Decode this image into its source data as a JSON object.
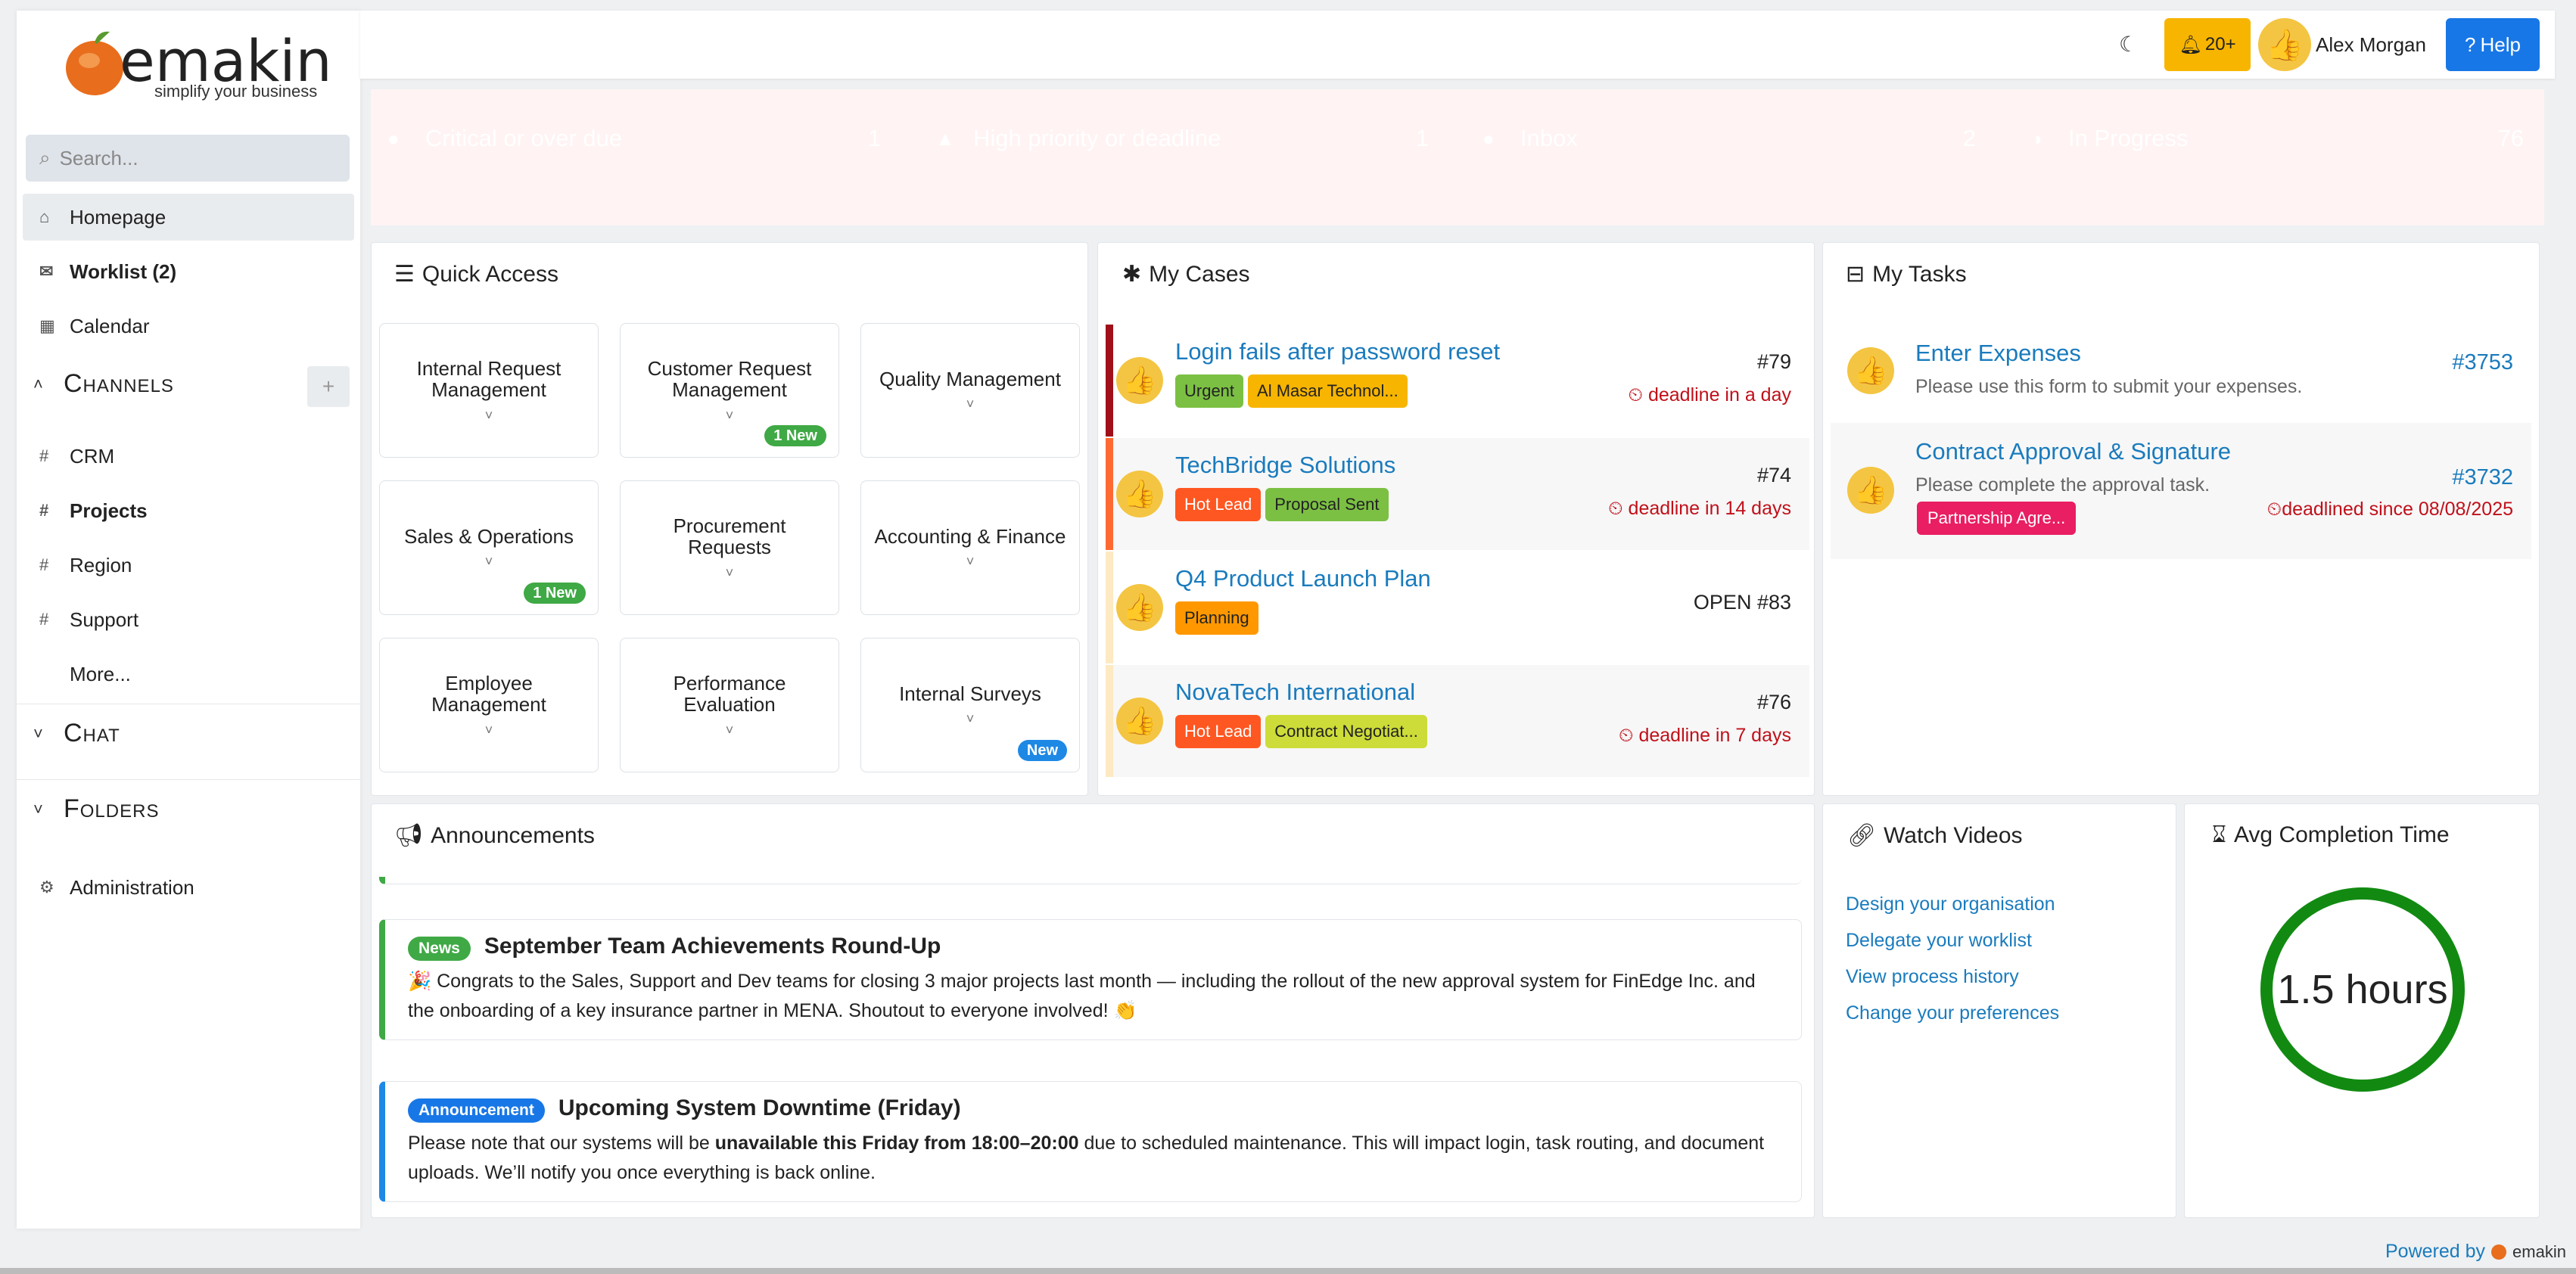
{
  "brand": {
    "name": "emakin",
    "tagline": "simplify your business"
  },
  "search": {
    "placeholder": "Search..."
  },
  "nav": {
    "homepage": "Homepage",
    "worklist": "Worklist (2)",
    "calendar": "Calendar",
    "channels_title": "Channels",
    "channels": [
      "CRM",
      "Projects",
      "Region",
      "Support"
    ],
    "more": "More...",
    "chat_title": "Chat",
    "folders_title": "Folders",
    "administration": "Administration"
  },
  "topbar": {
    "notifications": "20+",
    "user": "Alex Morgan",
    "help": "Help"
  },
  "kpis": [
    {
      "label": "Critical or over due",
      "count": "1",
      "color": "#ef3b3b"
    },
    {
      "label": "High priority or deadline",
      "count": "1",
      "color": "#f7b500"
    },
    {
      "label": "Inbox",
      "count": "2",
      "color": "#1e88e5"
    },
    {
      "label": "In Progress",
      "count": "76",
      "color": "#3fa945"
    }
  ],
  "quick_access": {
    "title": "Quick Access",
    "items": [
      {
        "label": "Internal Request Management",
        "badge": ""
      },
      {
        "label": "Customer Request Management",
        "badge": "1 New"
      },
      {
        "label": "Quality Management",
        "badge": ""
      },
      {
        "label": "Sales & Operations",
        "badge": "1 New"
      },
      {
        "label": "Procurement Requests",
        "badge": ""
      },
      {
        "label": "Accounting & Finance",
        "badge": ""
      },
      {
        "label": "Employee Management",
        "badge": ""
      },
      {
        "label": "Performance Evaluation",
        "badge": ""
      },
      {
        "label": "Internal Surveys",
        "badge": "New"
      }
    ]
  },
  "my_cases": {
    "title": "My Cases",
    "items": [
      {
        "title": "Login fails after password reset",
        "num": "#79",
        "deadline": "deadline in a day",
        "tags": [
          "Urgent",
          "Al Masar Technol..."
        ]
      },
      {
        "title": "TechBridge Solutions",
        "num": "#74",
        "deadline": "deadline in 14 days",
        "tags": [
          "Hot Lead",
          "Proposal Sent"
        ]
      },
      {
        "title": "Q4 Product Launch Plan",
        "num": "OPEN #83",
        "deadline": "",
        "tags": [
          "Planning"
        ]
      },
      {
        "title": "NovaTech International",
        "num": "#76",
        "deadline": "deadline in 7 days",
        "tags": [
          "Hot Lead",
          "Contract Negotiat..."
        ]
      }
    ]
  },
  "my_tasks": {
    "title": "My Tasks",
    "items": [
      {
        "title": "Enter Expenses",
        "desc": "Please use this form to submit your expenses.",
        "num": "#3753",
        "deadline": "",
        "tag": ""
      },
      {
        "title": "Contract Approval & Signature",
        "desc": "Please complete the approval task.",
        "num": "#3732",
        "deadline": "deadlined since 08/08/2025",
        "tag": "Partnership Agre..."
      }
    ]
  },
  "announcements": {
    "title": "Announcements",
    "items": [
      {
        "badge": "News",
        "title": "September Team Achievements Round-Up",
        "text": "🎉 Congrats to the Sales, Support and Dev teams for closing 3 major projects last month — including the rollout of the new approval system for FinEdge Inc. and the onboarding of a key insurance partner in MENA. Shoutout to everyone involved! 👏"
      },
      {
        "badge": "Announcement",
        "title": "Upcoming System Downtime (Friday)",
        "text_pre": "Please note that our systems will be ",
        "text_bold": "unavailable this Friday from 18:00–20:00",
        "text_post": " due to scheduled maintenance. This will impact login, task routing, and document uploads. We’ll notify you once everything is back online."
      }
    ]
  },
  "watch_videos": {
    "title": "Watch Videos",
    "links": [
      "Design your organisation",
      "Delegate your worklist",
      "View process history",
      "Change your preferences"
    ]
  },
  "avg_completion": {
    "title": "Avg Completion Time",
    "value": "1.5 hours"
  },
  "footer": {
    "powered": "Powered by",
    "brand": "emakin"
  }
}
